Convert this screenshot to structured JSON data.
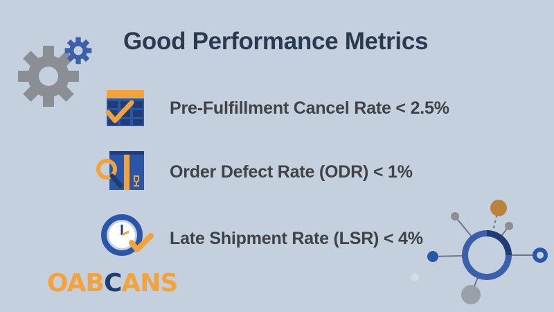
{
  "header": {
    "title": "Good Performance Metrics"
  },
  "metrics": [
    {
      "label": "Pre-Fulfillment Cancel Rate < 2.5%",
      "icon": "calendar-check-icon"
    },
    {
      "label": "Order Defect Rate (ODR) < 1%",
      "icon": "package-magnifier-icon"
    },
    {
      "label": "Late Shipment Rate (LSR) < 4%",
      "icon": "clock-check-icon"
    }
  ],
  "logo": {
    "part1": "OAB",
    "part2": "ANS"
  },
  "colors": {
    "background": "#c5d0de",
    "navy": "#1f3d73",
    "blue": "#2b56a8",
    "orange": "#f3a33c",
    "gear_gray": "#8a8f96",
    "gear_blue": "#3b5fa8"
  }
}
